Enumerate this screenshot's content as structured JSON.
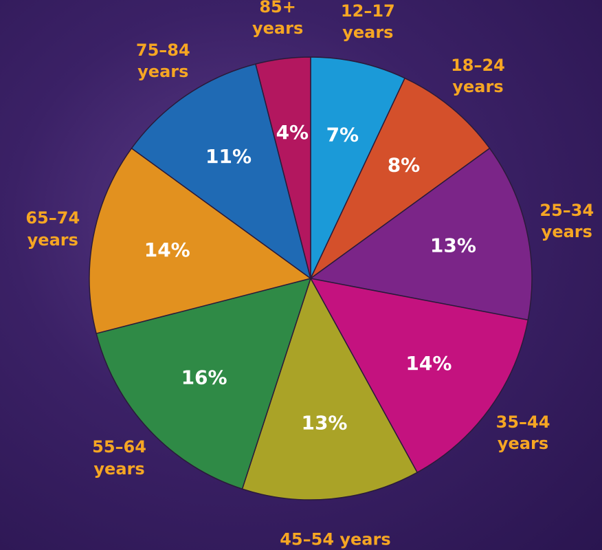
{
  "chart_data": {
    "type": "pie",
    "categories": [
      "12–17 years",
      "18–24 years",
      "25–34 years",
      "35–44 years",
      "45–54 years",
      "55–64 years",
      "65–74 years",
      "75–84 years",
      "85+ years"
    ],
    "values": [
      7,
      8,
      13,
      14,
      13,
      16,
      14,
      11,
      4
    ],
    "value_labels": [
      "7%",
      "8%",
      "13%",
      "14%",
      "13%",
      "16%",
      "14%",
      "11%",
      "4%"
    ],
    "colors": [
      "#1b9ad8",
      "#d4502b",
      "#7b2588",
      "#c4127f",
      "#aaa327",
      "#2f8a46",
      "#e2911f",
      "#1f6ab4",
      "#b3175f"
    ]
  }
}
